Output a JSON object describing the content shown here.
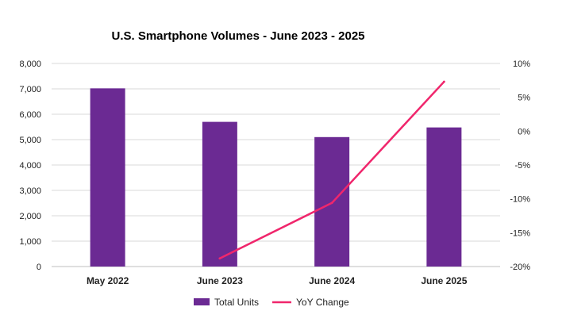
{
  "chart_data": {
    "type": "bar",
    "title": "U.S. Smartphone Volumes - June 2023 - 2025",
    "categories": [
      "May 2022",
      "June 2023",
      "June 2024",
      "June 2025"
    ],
    "series": [
      {
        "name": "Total Units",
        "type": "bar",
        "axis": "left",
        "values": [
          7020,
          5700,
          5100,
          5480
        ],
        "color": "#6B2A93"
      },
      {
        "name": "YoY Change",
        "type": "line",
        "axis": "right",
        "values": [
          null,
          -18.8,
          -10.6,
          7.3
        ],
        "color": "#F0266C"
      }
    ],
    "y_left": {
      "lim": [
        0,
        8000
      ],
      "ticks": [
        0,
        1000,
        2000,
        3000,
        4000,
        5000,
        6000,
        7000,
        8000
      ],
      "tick_labels": [
        "0",
        "1,000",
        "2,000",
        "3,000",
        "4,000",
        "5,000",
        "6,000",
        "7,000",
        "8,000"
      ]
    },
    "y_right": {
      "lim": [
        -20,
        10
      ],
      "ticks": [
        -20,
        -15,
        -10,
        -5,
        0,
        5,
        10
      ],
      "tick_labels": [
        "-20%",
        "-15%",
        "-10%",
        "-5%",
        "0%",
        "5%",
        "10%"
      ]
    },
    "grid": true,
    "legend_position": "bottom"
  }
}
